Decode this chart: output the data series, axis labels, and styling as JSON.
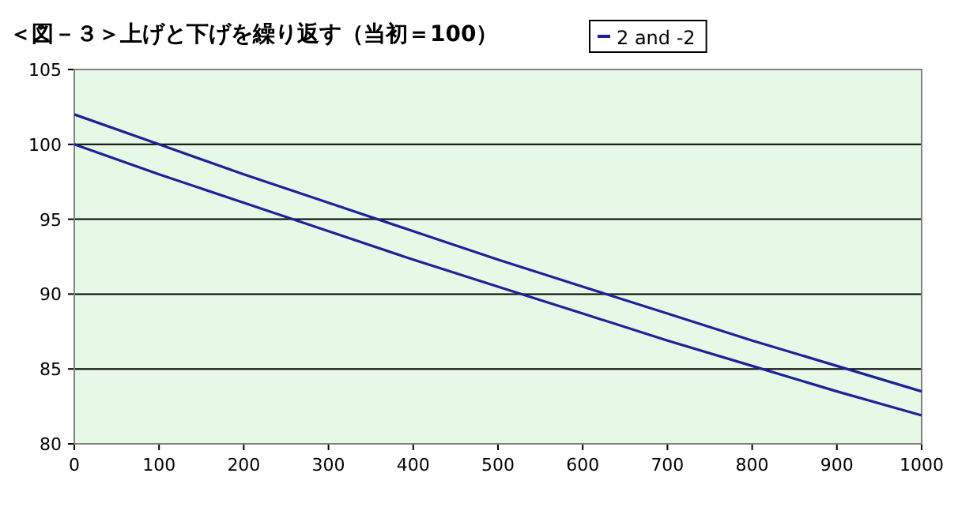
{
  "chart_data": {
    "type": "line",
    "title": "＜図－３＞上げと下げを繰り返す（当初＝100）",
    "x": [
      0,
      100,
      200,
      300,
      400,
      500,
      600,
      700,
      800,
      900,
      1000
    ],
    "series": [
      {
        "name": "2 and -2",
        "color": "#20209a",
        "values": [
          100,
          98,
          96.1,
          94.2,
          92.3,
          90.5,
          88.7,
          86.9,
          85.2,
          83.5,
          81.9
        ]
      },
      {
        "color": "#20209a",
        "values": [
          102,
          100,
          98,
          96.1,
          94.2,
          92.3,
          90.5,
          88.7,
          86.9,
          85.2,
          83.5
        ]
      }
    ],
    "xlim": [
      0,
      1000
    ],
    "xticks": [
      0,
      100,
      200,
      300,
      400,
      500,
      600,
      700,
      800,
      900,
      1000
    ],
    "ylim": [
      80,
      105
    ],
    "yticks": [
      80,
      85,
      90,
      95,
      100,
      105
    ],
    "grid": "y",
    "legend": "top right"
  }
}
